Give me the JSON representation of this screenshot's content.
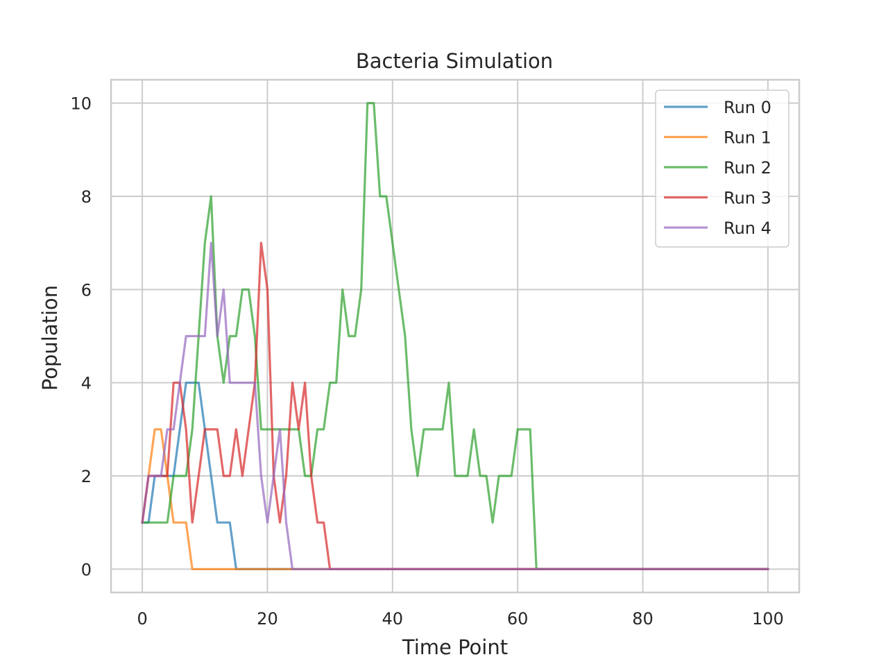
{
  "chart_data": {
    "type": "line",
    "title": "Bacteria Simulation",
    "xlabel": "Time Point",
    "ylabel": "Population",
    "xlim": [
      -5,
      105
    ],
    "ylim": [
      -0.5,
      10.5
    ],
    "xticks": [
      0,
      20,
      40,
      60,
      80,
      100
    ],
    "yticks": [
      0,
      2,
      4,
      6,
      8,
      10
    ],
    "grid": true,
    "legend_position": "top-right",
    "series": [
      {
        "name": "Run 0",
        "color": "#1f77b4",
        "points": [
          [
            0,
            1
          ],
          [
            1,
            1
          ],
          [
            2,
            2
          ],
          [
            3,
            2
          ],
          [
            4,
            2
          ],
          [
            5,
            2
          ],
          [
            6,
            3
          ],
          [
            7,
            4
          ],
          [
            8,
            4
          ],
          [
            9,
            4
          ],
          [
            10,
            3
          ],
          [
            11,
            2
          ],
          [
            12,
            1
          ],
          [
            13,
            1
          ],
          [
            14,
            1
          ],
          [
            15,
            0
          ],
          [
            100,
            0
          ]
        ]
      },
      {
        "name": "Run 1",
        "color": "#ff7f0e",
        "points": [
          [
            0,
            1
          ],
          [
            1,
            2
          ],
          [
            2,
            3
          ],
          [
            3,
            3
          ],
          [
            4,
            2
          ],
          [
            5,
            1
          ],
          [
            6,
            1
          ],
          [
            7,
            1
          ],
          [
            8,
            0
          ],
          [
            100,
            0
          ]
        ]
      },
      {
        "name": "Run 2",
        "color": "#2ca02c",
        "points": [
          [
            0,
            1
          ],
          [
            1,
            1
          ],
          [
            2,
            1
          ],
          [
            3,
            1
          ],
          [
            4,
            1
          ],
          [
            5,
            2
          ],
          [
            6,
            2
          ],
          [
            7,
            2
          ],
          [
            8,
            3
          ],
          [
            9,
            5
          ],
          [
            10,
            7
          ],
          [
            11,
            8
          ],
          [
            12,
            5
          ],
          [
            13,
            4
          ],
          [
            14,
            5
          ],
          [
            15,
            5
          ],
          [
            16,
            6
          ],
          [
            17,
            6
          ],
          [
            18,
            5
          ],
          [
            19,
            3
          ],
          [
            20,
            3
          ],
          [
            21,
            3
          ],
          [
            22,
            3
          ],
          [
            23,
            3
          ],
          [
            24,
            3
          ],
          [
            25,
            3
          ],
          [
            26,
            2
          ],
          [
            27,
            2
          ],
          [
            28,
            3
          ],
          [
            29,
            3
          ],
          [
            30,
            4
          ],
          [
            31,
            4
          ],
          [
            32,
            6
          ],
          [
            33,
            5
          ],
          [
            34,
            5
          ],
          [
            35,
            6
          ],
          [
            36,
            10
          ],
          [
            37,
            10
          ],
          [
            38,
            8
          ],
          [
            39,
            8
          ],
          [
            40,
            7
          ],
          [
            41,
            6
          ],
          [
            42,
            5
          ],
          [
            43,
            3
          ],
          [
            44,
            2
          ],
          [
            45,
            3
          ],
          [
            46,
            3
          ],
          [
            47,
            3
          ],
          [
            48,
            3
          ],
          [
            49,
            4
          ],
          [
            50,
            2
          ],
          [
            51,
            2
          ],
          [
            52,
            2
          ],
          [
            53,
            3
          ],
          [
            54,
            2
          ],
          [
            55,
            2
          ],
          [
            56,
            1
          ],
          [
            57,
            2
          ],
          [
            58,
            2
          ],
          [
            59,
            2
          ],
          [
            60,
            3
          ],
          [
            61,
            3
          ],
          [
            62,
            3
          ],
          [
            63,
            0
          ],
          [
            100,
            0
          ]
        ]
      },
      {
        "name": "Run 3",
        "color": "#d62728",
        "points": [
          [
            0,
            1
          ],
          [
            1,
            2
          ],
          [
            2,
            2
          ],
          [
            3,
            2
          ],
          [
            4,
            2
          ],
          [
            5,
            4
          ],
          [
            6,
            4
          ],
          [
            7,
            3
          ],
          [
            8,
            1
          ],
          [
            9,
            2
          ],
          [
            10,
            3
          ],
          [
            11,
            3
          ],
          [
            12,
            3
          ],
          [
            13,
            2
          ],
          [
            14,
            2
          ],
          [
            15,
            3
          ],
          [
            16,
            2
          ],
          [
            17,
            3
          ],
          [
            18,
            4
          ],
          [
            19,
            7
          ],
          [
            20,
            6
          ],
          [
            21,
            2
          ],
          [
            22,
            1
          ],
          [
            23,
            2
          ],
          [
            24,
            4
          ],
          [
            25,
            3
          ],
          [
            26,
            4
          ],
          [
            27,
            2
          ],
          [
            28,
            1
          ],
          [
            29,
            1
          ],
          [
            30,
            0
          ],
          [
            100,
            0
          ]
        ]
      },
      {
        "name": "Run 4",
        "color": "#9467bd",
        "points": [
          [
            0,
            1
          ],
          [
            1,
            2
          ],
          [
            2,
            2
          ],
          [
            3,
            2
          ],
          [
            4,
            3
          ],
          [
            5,
            3
          ],
          [
            6,
            4
          ],
          [
            7,
            5
          ],
          [
            8,
            5
          ],
          [
            9,
            5
          ],
          [
            10,
            5
          ],
          [
            11,
            7
          ],
          [
            12,
            5
          ],
          [
            13,
            6
          ],
          [
            14,
            4
          ],
          [
            15,
            4
          ],
          [
            16,
            4
          ],
          [
            17,
            4
          ],
          [
            18,
            4
          ],
          [
            19,
            2
          ],
          [
            20,
            1
          ],
          [
            21,
            2
          ],
          [
            22,
            3
          ],
          [
            23,
            1
          ],
          [
            24,
            0
          ],
          [
            100,
            0
          ]
        ]
      }
    ]
  }
}
